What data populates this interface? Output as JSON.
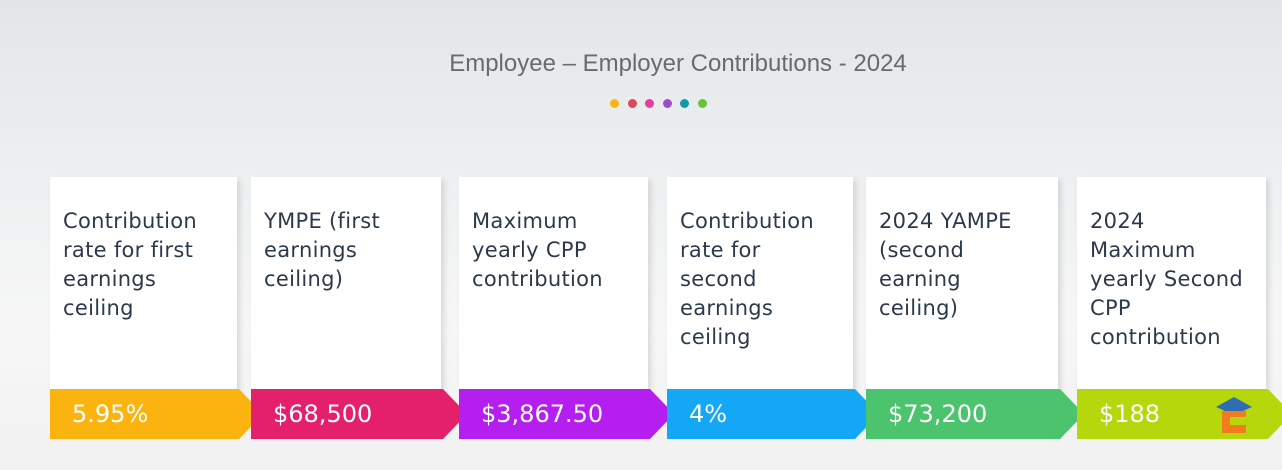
{
  "header": {
    "title": "Employee – Employer Contributions - 2024"
  },
  "cards": [
    {
      "label": "Contribution rate for first earnings ceiling",
      "value": "5.95%",
      "color": "#fbb40f"
    },
    {
      "label": "YMPE (first earnings ceiling)",
      "value": "$68,500",
      "color": "#e4206b"
    },
    {
      "label": "Maximum yearly CPP contribution",
      "value": "$3,867.50",
      "color": "#b41ff0"
    },
    {
      "label": "Contribution rate for second earnings ceiling",
      "value": "4%",
      "color": "#14a7f5"
    },
    {
      "label": "2024 YAMPE (second earning ceiling)",
      "value": "$73,200",
      "color": "#4cc46d"
    },
    {
      "label": "2024 Maximum yearly Second CPP contribution",
      "value": "$188",
      "color": "#b6d70b"
    }
  ]
}
